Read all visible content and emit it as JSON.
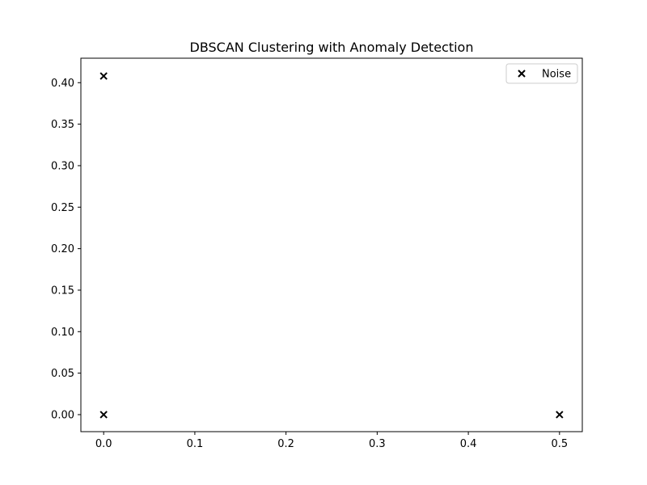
{
  "chart_data": {
    "type": "scatter",
    "title": "DBSCAN Clustering with Anomaly Detection",
    "xlabel": "",
    "ylabel": "",
    "xlim": [
      -0.025,
      0.525
    ],
    "ylim": [
      -0.0205,
      0.4295
    ],
    "x_ticks": [
      0.0,
      0.1,
      0.2,
      0.3,
      0.4,
      0.5
    ],
    "x_tick_labels": [
      "0.0",
      "0.1",
      "0.2",
      "0.3",
      "0.4",
      "0.5"
    ],
    "y_ticks": [
      0.0,
      0.05,
      0.1,
      0.15,
      0.2,
      0.25,
      0.3,
      0.35,
      0.4
    ],
    "y_tick_labels": [
      "0.00",
      "0.05",
      "0.10",
      "0.15",
      "0.20",
      "0.25",
      "0.30",
      "0.35",
      "0.40"
    ],
    "grid": false,
    "legend_position": "top-right",
    "series": [
      {
        "name": "Noise",
        "marker": "x",
        "color": "#000000",
        "points": [
          {
            "x": 0.0,
            "y": 0.408
          },
          {
            "x": 0.0,
            "y": 0.0
          },
          {
            "x": 0.5,
            "y": 0.0
          }
        ]
      }
    ]
  }
}
